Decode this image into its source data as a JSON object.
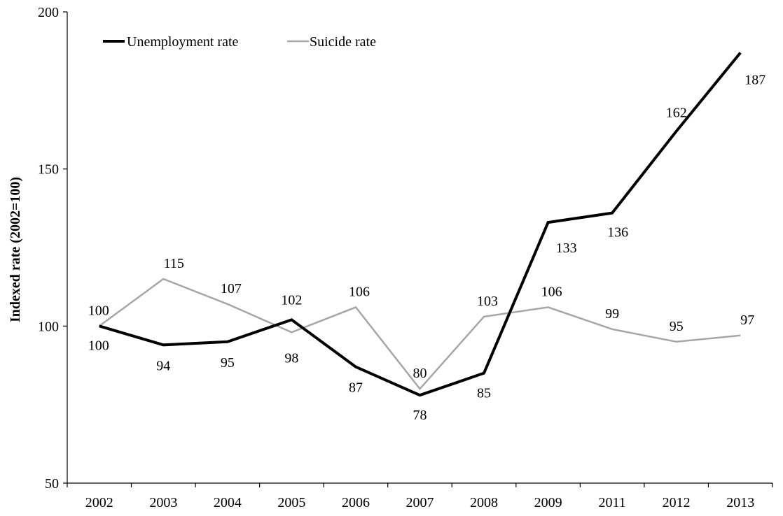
{
  "chart_data": {
    "type": "line",
    "title": "",
    "xlabel": "",
    "ylabel": "Indexed rate (2002=100)",
    "ylim": [
      50,
      200
    ],
    "yticks": [
      50,
      100,
      150,
      200
    ],
    "grid": false,
    "legend_position": "top-left",
    "categories": [
      "2002",
      "2003",
      "2004",
      "2005",
      "2006",
      "2007",
      "2008",
      "2009",
      "2011",
      "2012",
      "2013"
    ],
    "series": [
      {
        "name": "Unemployment rate",
        "color": "#000000",
        "values": [
          100,
          94,
          95,
          102,
          87,
          78,
          85,
          133,
          136,
          162,
          187
        ],
        "data_labels": [
          "100",
          "94",
          "95",
          "102",
          "87",
          "78",
          "85",
          "133",
          "136",
          "162",
          "187"
        ]
      },
      {
        "name": "Suicide rate",
        "color": "#a6a6a6",
        "values": [
          100,
          115,
          107,
          98,
          106,
          80,
          103,
          106,
          99,
          95,
          97
        ],
        "data_labels": [
          "100",
          "115",
          "107",
          "98",
          "106",
          "80",
          "103",
          "106",
          "99",
          "95",
          "97"
        ]
      }
    ]
  }
}
